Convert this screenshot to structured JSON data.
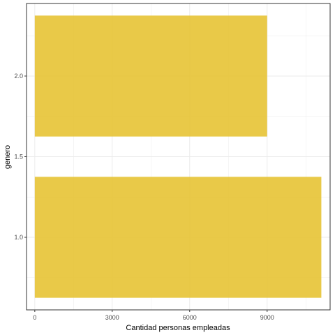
{
  "chart_data": {
    "type": "bar",
    "orientation": "horizontal",
    "xlabel": "Cantidad personas empleadas",
    "ylabel": "genero",
    "xlim": [
      -320,
      11440
    ],
    "ylim": [
      0.55,
      2.45
    ],
    "x_ticks": [
      0,
      3000,
      6000,
      9000
    ],
    "x_tick_labels": [
      "0",
      "3000",
      "6000",
      "9000"
    ],
    "y_ticks": [
      1.0,
      1.5,
      2.0
    ],
    "y_tick_labels": [
      "1.0",
      "1.5",
      "2.0"
    ],
    "bar_width": 0.75,
    "bars": [
      {
        "y": 1,
        "value": 11100
      },
      {
        "y": 2,
        "value": 9000
      }
    ],
    "grid": true,
    "legend": "none",
    "colors": {
      "bar": "#e6c12f",
      "grid": "#ebebeb",
      "panel_border": "#333333"
    }
  }
}
